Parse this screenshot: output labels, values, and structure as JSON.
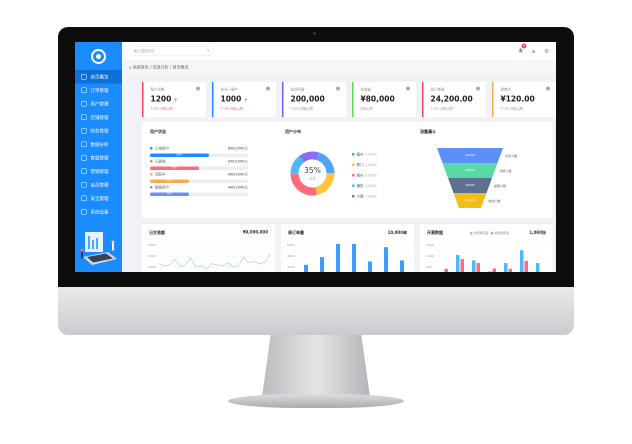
{
  "header": {
    "search_placeholder": "输入搜索内容",
    "notification_count": "8"
  },
  "breadcrumb": "系统首页 / 信息分析 / 首页概览",
  "sidebar": {
    "items": [
      "首页概览",
      "订单管理",
      "用户管理",
      "店铺管理",
      "财务管理",
      "数据分析",
      "客服管理",
      "营销管理",
      "会员管理",
      "安全管理",
      "系统设置"
    ]
  },
  "cards": [
    {
      "title": "账户总数",
      "value": "1200",
      "unit": "个",
      "change": "↑10%  同比上周",
      "color": "#f5455c",
      "trend": "up"
    },
    {
      "title": "关注一周户",
      "value": "1000",
      "unit": "个",
      "change": "↑10%  同比上周",
      "color": "#1a8cff",
      "trend": "up"
    },
    {
      "title": "总访问量",
      "value": "200,000",
      "unit": "",
      "change": "↑10%  同比上周",
      "color": "#7b5cf5",
      "trend": "up"
    },
    {
      "title": "总收益",
      "value": "¥80,000",
      "unit": "",
      "change": "同比上周",
      "color": "#5fd35f",
      "trend": "flat"
    },
    {
      "title": "总订单量",
      "value": "24,200.00",
      "unit": "",
      "change": "↓10%  同比上周",
      "color": "#f5455c",
      "trend": "down"
    },
    {
      "title": "退单价",
      "value": "¥120.00",
      "unit": "",
      "change": "↑10%  同比上周",
      "color": "#ffa94d",
      "trend": "up"
    }
  ],
  "user_status": {
    "title": "用户状态",
    "rows": [
      {
        "label": "上线用户",
        "value": "600/1000人",
        "percent": 60,
        "pct_label": "60%",
        "color": "#1a8cff"
      },
      {
        "label": "已离线",
        "value": "500/1000人",
        "percent": 50,
        "pct_label": "50%",
        "color": "#f56c7e"
      },
      {
        "label": "活跃中",
        "value": "400/1000人",
        "percent": 40,
        "pct_label": "40%",
        "color": "#ffa94d"
      },
      {
        "label": "超级用户",
        "value": "400/1000人",
        "percent": 40,
        "pct_label": "40%",
        "color": "#6b8ff5"
      }
    ]
  },
  "user_dist": {
    "title": "用户分布",
    "center_value": "35%",
    "center_label": "占比",
    "slices": [
      {
        "label": "福州",
        "value": "10000",
        "share": 20,
        "color": "#4da3ff"
      },
      {
        "label": "厦门",
        "value": "10000",
        "share": 22,
        "color": "#ffc53d"
      },
      {
        "label": "泉州",
        "value": "10000",
        "share": 28,
        "color": "#ff6b7a"
      },
      {
        "label": "莆田",
        "value": "10000",
        "share": 15,
        "color": "#4db8ff"
      },
      {
        "label": "宁德",
        "value": "10000",
        "share": 15,
        "color": "#8c6bf5"
      }
    ]
  },
  "funnel": {
    "title": "流量漏斗",
    "stages": [
      {
        "value": "20000",
        "label": "访问人数",
        "color": "#5b8ff9"
      },
      {
        "value": "20000",
        "label": "浏览人数",
        "color": "#5ad8a6"
      },
      {
        "value": "20000",
        "label": "加购人数",
        "color": "#5d7092"
      },
      {
        "value": "10000",
        "label": "成交人数",
        "color": "#f6bd16"
      }
    ]
  },
  "daily": {
    "title": "日交易额",
    "total": "¥9,000,000",
    "y_ticks": [
      "5000",
      "4000",
      "3000"
    ],
    "values": [
      3300,
      3100,
      3200,
      3700,
      3000,
      3200,
      3800,
      3000,
      3100,
      2800,
      3300,
      3200,
      3100,
      3400,
      3000,
      3100,
      3900,
      3400,
      3500,
      3300,
      3400,
      4200
    ],
    "color": "#8fdb8f"
  },
  "weekly": {
    "title": "周订单量",
    "total": "10,000单",
    "y_ticks": [
      "5000",
      "4000",
      "3000"
    ],
    "values": [
      3200,
      3900,
      5100,
      5100,
      3500,
      4800,
      3600
    ],
    "color": "#3e9bff"
  },
  "invoice": {
    "title": "开票数据",
    "total": "1,000张",
    "legend": [
      "增值税专票",
      "增值税普票"
    ],
    "y_ticks": [
      "1500",
      "1000",
      "500"
    ],
    "series": [
      [
        0,
        1050,
        800,
        300,
        680,
        1260,
        680
      ],
      [
        420,
        860,
        680,
        430,
        420,
        780,
        200
      ]
    ],
    "colors": [
      "#4db8ff",
      "#ff6b7a"
    ]
  }
}
